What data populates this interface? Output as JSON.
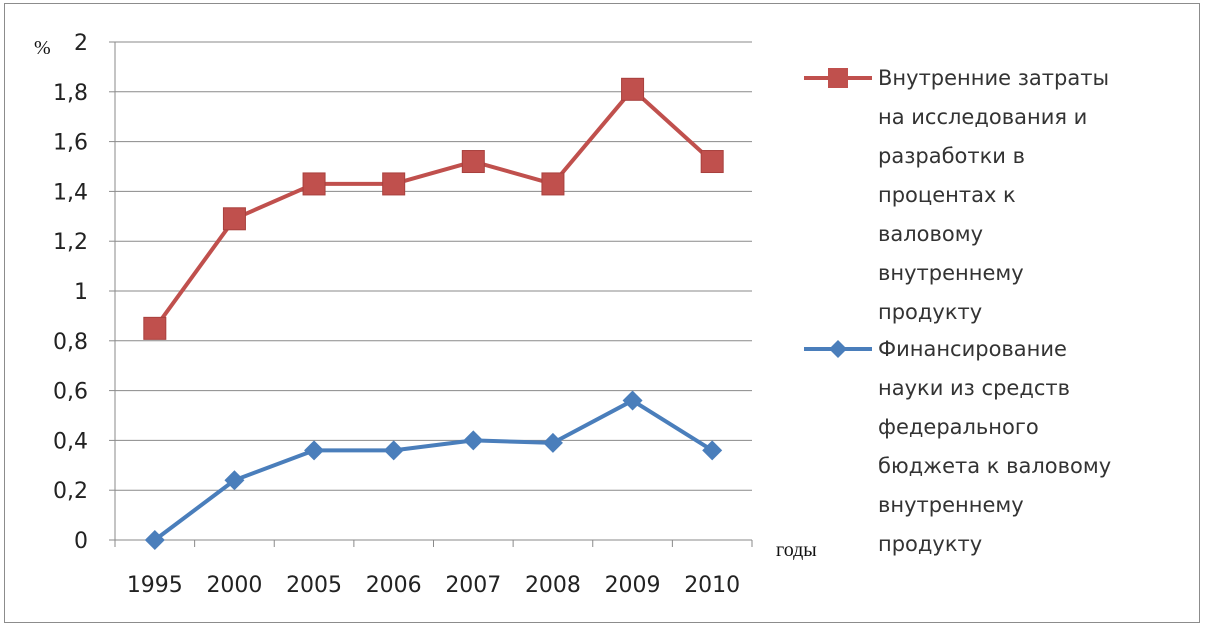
{
  "chart_data": {
    "type": "line",
    "categories": [
      "1995",
      "2000",
      "2005",
      "2006",
      "2007",
      "2008",
      "2009",
      "2010"
    ],
    "y_unit": "%",
    "x_unit": "годы",
    "ylim": [
      0,
      2
    ],
    "ytick_labels": [
      "0",
      "0,2",
      "0,4",
      "0,6",
      "0,8",
      "1",
      "1,2",
      "1,4",
      "1,6",
      "1,8",
      "2"
    ],
    "grid": true,
    "legend_position": "right",
    "series": [
      {
        "name": "Внутренние затраты на исследования и разработки в процентах к валовому внутреннему продукту",
        "legend_lines": [
          "Внутренние затраты",
          "на исследования и",
          "разработки в",
          "процентах к",
          "валовому",
          "внутреннему",
          "продукту"
        ],
        "color": "#c0504d",
        "marker": "square",
        "values": [
          0.85,
          1.29,
          1.43,
          1.43,
          1.52,
          1.43,
          1.81,
          1.52
        ]
      },
      {
        "name": "Финансирование науки из средств федерального бюджета к валовому внутреннему продукту",
        "legend_lines": [
          "Финансирование",
          "науки из средств",
          "федерального",
          "бюджета к валовому",
          "внутреннему",
          "продукту"
        ],
        "color": "#4a7ebb",
        "marker": "diamond",
        "values": [
          0.0,
          0.24,
          0.36,
          0.36,
          0.4,
          0.39,
          0.56,
          0.36
        ]
      }
    ]
  }
}
